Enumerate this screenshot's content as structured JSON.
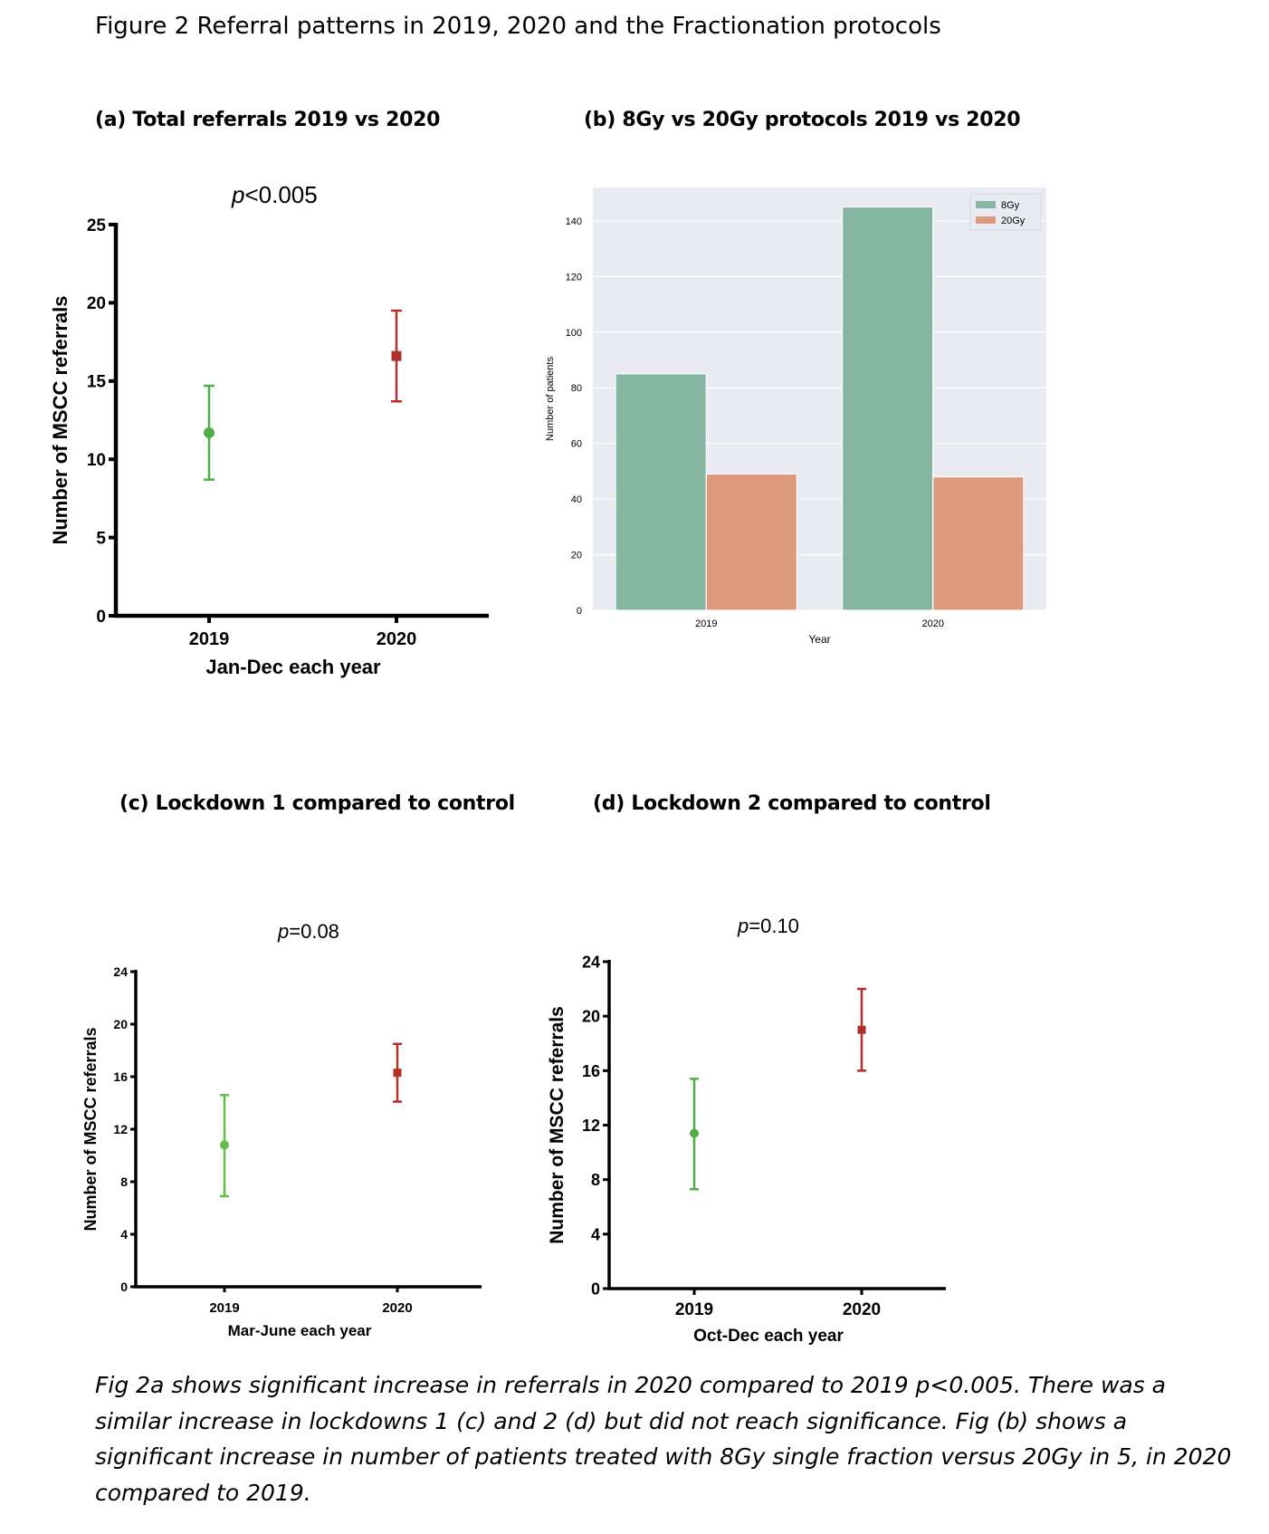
{
  "figure_title": "Figure 2 Referral patterns in 2019, 2020 and the Fractionation protocols",
  "panels": {
    "a": {
      "heading": "(a)  Total referrals 2019 vs 2020",
      "p_prefix": "p",
      "p_value": "<0.005"
    },
    "b": {
      "heading": "(b)  8Gy vs 20Gy protocols 2019 vs 2020"
    },
    "c": {
      "heading": "(c)   Lockdown 1 compared to control",
      "p_prefix": "p",
      "p_value": "=0.08"
    },
    "d": {
      "heading": "(d)   Lockdown 2 compared to control",
      "p_prefix": "p",
      "p_value": "=0.10"
    }
  },
  "colors": {
    "green": "#4fae4a",
    "red": "#b2302a",
    "bar_8gy": "#86b5a1",
    "bar_20gy": "#de9a7d",
    "plot_bg": "#e9eaf2"
  },
  "chart_data": [
    {
      "id": "a",
      "type": "scatter",
      "categories": [
        "2019",
        "2020"
      ],
      "series": [
        {
          "x": "2019",
          "y": 11.7,
          "yerr_low": 8.7,
          "yerr_high": 14.7,
          "marker": "circle",
          "color": "#4fae4a"
        },
        {
          "x": "2020",
          "y": 16.6,
          "yerr_low": 13.7,
          "yerr_high": 19.5,
          "marker": "square",
          "color": "#b2302a"
        }
      ],
      "xlabel": "Jan-Dec each year",
      "ylabel": "Number of MSCC referrals",
      "ylim": [
        0,
        25
      ],
      "yticks": [
        0,
        5,
        10,
        15,
        20,
        25
      ],
      "grid": false
    },
    {
      "id": "b",
      "type": "bar",
      "categories": [
        "2019",
        "2020"
      ],
      "series": [
        {
          "name": "8Gy",
          "values": [
            85,
            145
          ],
          "color": "#86b5a1"
        },
        {
          "name": "20Gy",
          "values": [
            49,
            48
          ],
          "color": "#de9a7d"
        }
      ],
      "xlabel": "Year",
      "ylabel": "Number of patients",
      "ylim": [
        0,
        152
      ],
      "yticks": [
        0,
        20,
        40,
        60,
        80,
        100,
        120,
        140
      ],
      "grid": true,
      "legend": "top-right"
    },
    {
      "id": "c",
      "type": "scatter",
      "categories": [
        "2019",
        "2020"
      ],
      "series": [
        {
          "x": "2019",
          "y": 10.8,
          "yerr_low": 6.9,
          "yerr_high": 14.6,
          "marker": "circle",
          "color": "#63bd4a"
        },
        {
          "x": "2020",
          "y": 16.3,
          "yerr_low": 14.1,
          "yerr_high": 18.5,
          "marker": "square",
          "color": "#b2302a"
        }
      ],
      "xlabel": "Mar-June each year",
      "ylabel": "Number of MSCC referrals",
      "ylim": [
        0,
        24
      ],
      "yticks": [
        0,
        4,
        8,
        12,
        16,
        20,
        24
      ],
      "grid": false
    },
    {
      "id": "d",
      "type": "scatter",
      "categories": [
        "2019",
        "2020"
      ],
      "series": [
        {
          "x": "2019",
          "y": 11.4,
          "yerr_low": 7.3,
          "yerr_high": 15.4,
          "marker": "circle",
          "color": "#4fae4a"
        },
        {
          "x": "2020",
          "y": 19.0,
          "yerr_low": 16.0,
          "yerr_high": 22.0,
          "marker": "square",
          "color": "#b2302a"
        }
      ],
      "xlabel": "Oct-Dec each year",
      "ylabel": "Number of MSCC referrals",
      "ylim": [
        0,
        24
      ],
      "yticks": [
        0,
        4,
        8,
        12,
        16,
        20,
        24
      ],
      "grid": false
    }
  ],
  "caption": "Fig 2a shows significant increase in referrals in 2020 compared to 2019 p<0.005. There was a similar increase in lockdowns 1 (c) and 2 (d) but did not reach significance. Fig (b) shows a significant increase in number of patients treated with 8Gy single fraction versus 20Gy in 5, in 2020 compared to 2019."
}
